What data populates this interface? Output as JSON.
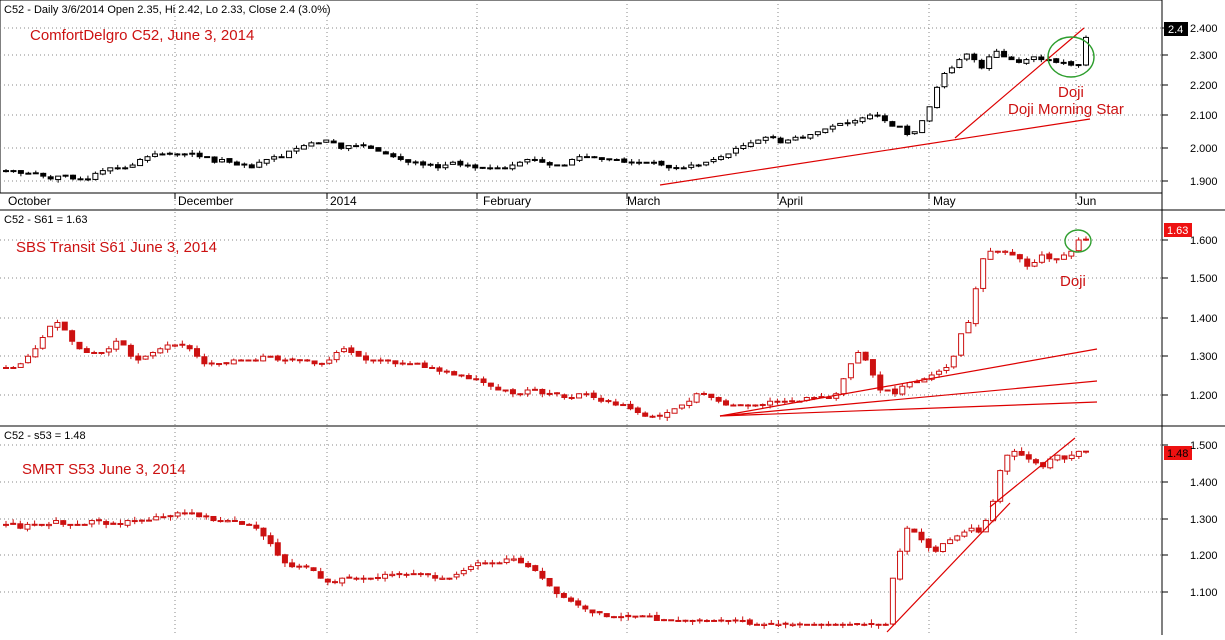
{
  "header": {
    "text": "C52 - Daily 3/6/2014 Open 2.35, Hi 2.42, Lo 2.33, Close 2.4 (3.0%)"
  },
  "colors": {
    "annotation": "#cc1111",
    "up_candle_main": "#000000",
    "down_candle_main": "#000000",
    "up_candle_other": "#cc1111",
    "down_candle_other": "#cc1111",
    "trendline": "#dd0000",
    "circle": "#2e9e2e",
    "grid": "#888888",
    "price_tag_main_bg": "#000000",
    "price_tag_other_bg": "#ee1111"
  },
  "chart_data": [
    {
      "type": "candlestick",
      "title": "ComfortDelgro C52, June 3, 2014",
      "x_ticks": [
        "October",
        "December",
        "2014",
        "February",
        "March",
        "April",
        "May",
        "Jun"
      ],
      "y_ticks": [
        "1.900",
        "2.000",
        "2.100",
        "2.200",
        "2.300",
        "2.400"
      ],
      "ylim": [
        1.85,
        2.47
      ],
      "last_value": "2.4",
      "annotations": [
        "Doji",
        "Doji Morning Star"
      ],
      "close": [
        1.92,
        1.92,
        1.91,
        1.91,
        1.91,
        1.9,
        1.89,
        1.9,
        1.9,
        1.89,
        1.89,
        1.89,
        1.91,
        1.92,
        1.93,
        1.93,
        1.93,
        1.94,
        1.96,
        1.97,
        1.98,
        1.98,
        1.98,
        1.98,
        1.98,
        1.98,
        1.97,
        1.97,
        1.95,
        1.96,
        1.95,
        1.94,
        1.94,
        1.93,
        1.95,
        1.96,
        1.97,
        1.97,
        1.99,
        2.0,
        2.01,
        2.02,
        2.02,
        2.03,
        2.02,
        2.0,
        2.01,
        2.01,
        2.01,
        2.0,
        1.99,
        1.98,
        1.97,
        1.96,
        1.95,
        1.95,
        1.94,
        1.94,
        1.93,
        1.94,
        1.95,
        1.94,
        1.94,
        1.93,
        1.93,
        1.93,
        1.93,
        1.93,
        1.94,
        1.95,
        1.96,
        1.96,
        1.95,
        1.94,
        1.94,
        1.94,
        1.96,
        1.97,
        1.97,
        1.97,
        1.96,
        1.96,
        1.96,
        1.95,
        1.95,
        1.95,
        1.95,
        1.95,
        1.94,
        1.93,
        1.93,
        1.93,
        1.94,
        1.94,
        1.95,
        1.96,
        1.97,
        1.98,
        2.0,
        2.01,
        2.02,
        2.03,
        2.04,
        2.04,
        2.02,
        2.03,
        2.04,
        2.04,
        2.05,
        2.06,
        2.07,
        2.08,
        2.09,
        2.09,
        2.1,
        2.11,
        2.12,
        2.12,
        2.1,
        2.08,
        2.08,
        2.05,
        2.06,
        2.1,
        2.15,
        2.22,
        2.27,
        2.29,
        2.32,
        2.34,
        2.32,
        2.29,
        2.33,
        2.35,
        2.33,
        2.32,
        2.31,
        2.32,
        2.33,
        2.32,
        2.32,
        2.31,
        2.31,
        2.3,
        2.3,
        2.4
      ],
      "volatility": 0.012
    },
    {
      "type": "candlestick",
      "title": "SBS Transit S61 June 3, 2014",
      "panel_label": "C52 - S61 = 1.63",
      "y_ticks": [
        "1.200",
        "1.300",
        "1.400",
        "1.500",
        "1.600"
      ],
      "ylim": [
        1.15,
        1.67
      ],
      "last_value": "1.63",
      "annotations": [
        "Doji"
      ],
      "close": [
        1.29,
        1.29,
        1.3,
        1.32,
        1.34,
        1.37,
        1.4,
        1.41,
        1.39,
        1.36,
        1.34,
        1.33,
        1.33,
        1.33,
        1.34,
        1.36,
        1.35,
        1.32,
        1.31,
        1.32,
        1.33,
        1.34,
        1.35,
        1.35,
        1.35,
        1.34,
        1.32,
        1.3,
        1.3,
        1.3,
        1.3,
        1.31,
        1.31,
        1.31,
        1.31,
        1.32,
        1.32,
        1.31,
        1.31,
        1.31,
        1.31,
        1.31,
        1.3,
        1.3,
        1.31,
        1.33,
        1.34,
        1.33,
        1.32,
        1.31,
        1.31,
        1.31,
        1.31,
        1.3,
        1.3,
        1.3,
        1.3,
        1.29,
        1.29,
        1.28,
        1.28,
        1.27,
        1.27,
        1.26,
        1.26,
        1.25,
        1.24,
        1.23,
        1.23,
        1.22,
        1.22,
        1.23,
        1.23,
        1.22,
        1.22,
        1.22,
        1.21,
        1.21,
        1.22,
        1.22,
        1.21,
        1.2,
        1.2,
        1.19,
        1.19,
        1.18,
        1.17,
        1.16,
        1.16,
        1.16,
        1.17,
        1.18,
        1.19,
        1.2,
        1.22,
        1.22,
        1.21,
        1.2,
        1.19,
        1.19,
        1.19,
        1.19,
        1.19,
        1.19,
        1.2,
        1.2,
        1.2,
        1.2,
        1.2,
        1.21,
        1.21,
        1.21,
        1.21,
        1.22,
        1.26,
        1.3,
        1.33,
        1.31,
        1.27,
        1.23,
        1.23,
        1.22,
        1.24,
        1.25,
        1.25,
        1.26,
        1.27,
        1.28,
        1.29,
        1.32,
        1.38,
        1.41,
        1.5,
        1.58,
        1.6,
        1.6,
        1.6,
        1.59,
        1.58,
        1.56,
        1.57,
        1.59,
        1.58,
        1.58,
        1.59,
        1.6,
        1.63,
        1.63
      ],
      "volatility": 0.01
    },
    {
      "type": "candlestick",
      "title": "SMRT S53 June 3, 2014",
      "panel_label": "C52 - s53 = 1.48",
      "y_ticks": [
        "1.100",
        "1.200",
        "1.300",
        "1.400",
        "1.500"
      ],
      "ylim": [
        1.01,
        1.52
      ],
      "last_value": "1.48",
      "close": [
        1.29,
        1.29,
        1.28,
        1.29,
        1.29,
        1.29,
        1.29,
        1.3,
        1.29,
        1.29,
        1.29,
        1.29,
        1.3,
        1.3,
        1.29,
        1.29,
        1.29,
        1.3,
        1.3,
        1.3,
        1.3,
        1.31,
        1.31,
        1.31,
        1.32,
        1.32,
        1.32,
        1.31,
        1.31,
        1.3,
        1.3,
        1.3,
        1.3,
        1.29,
        1.29,
        1.28,
        1.26,
        1.24,
        1.21,
        1.19,
        1.18,
        1.18,
        1.18,
        1.17,
        1.15,
        1.14,
        1.14,
        1.15,
        1.15,
        1.15,
        1.15,
        1.15,
        1.15,
        1.16,
        1.16,
        1.16,
        1.16,
        1.16,
        1.16,
        1.16,
        1.15,
        1.15,
        1.15,
        1.16,
        1.17,
        1.18,
        1.19,
        1.19,
        1.19,
        1.19,
        1.2,
        1.2,
        1.19,
        1.18,
        1.17,
        1.15,
        1.13,
        1.11,
        1.1,
        1.09,
        1.08,
        1.07,
        1.06,
        1.06,
        1.05,
        1.05,
        1.05,
        1.05,
        1.05,
        1.05,
        1.05,
        1.04,
        1.04,
        1.04,
        1.04,
        1.04,
        1.04,
        1.04,
        1.04,
        1.04,
        1.04,
        1.04,
        1.04,
        1.04,
        1.03,
        1.03,
        1.03,
        1.03,
        1.03,
        1.03,
        1.03,
        1.03,
        1.03,
        1.03,
        1.03,
        1.03,
        1.03,
        1.03,
        1.03,
        1.03,
        1.03,
        1.03,
        1.03,
        1.03,
        1.15,
        1.22,
        1.28,
        1.27,
        1.25,
        1.23,
        1.22,
        1.24,
        1.25,
        1.26,
        1.27,
        1.28,
        1.27,
        1.3,
        1.35,
        1.43,
        1.47,
        1.48,
        1.47,
        1.46,
        1.45,
        1.44,
        1.46,
        1.47,
        1.46,
        1.47,
        1.48,
        1.48
      ],
      "volatility": 0.011
    }
  ]
}
